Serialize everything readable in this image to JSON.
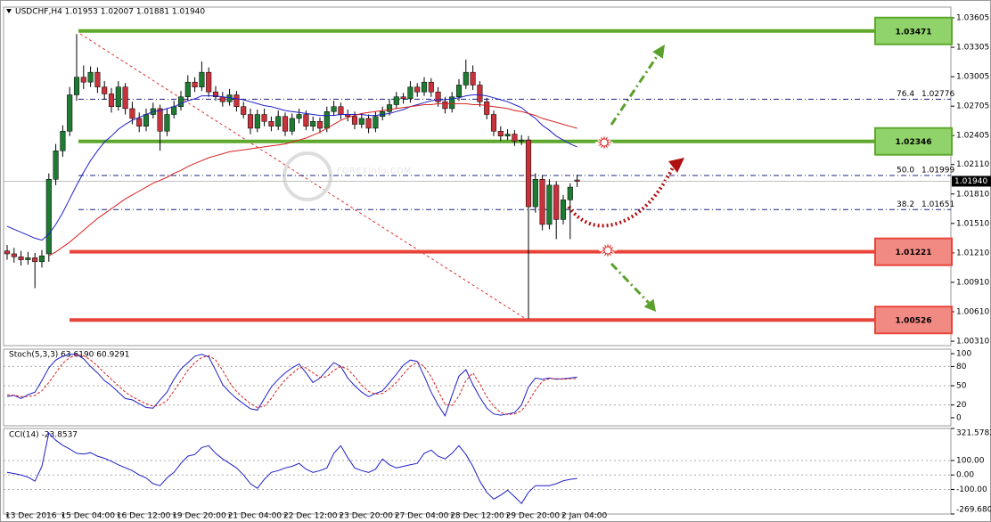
{
  "chart_data": [
    {
      "type": "candlestick",
      "title": "USDCHF,H4  1.01953 1.02007 1.01881 1.01940",
      "watermark": "FOREXinfo.COM",
      "categories": [
        "13 Dec 2016",
        null,
        null,
        null,
        null,
        null,
        null,
        null,
        "15 Dec 04:00",
        null,
        null,
        null,
        null,
        null,
        null,
        null,
        "16 Dec 12:00",
        null,
        null,
        null,
        null,
        null,
        null,
        null,
        "19 Dec 20:00",
        null,
        null,
        null,
        null,
        null,
        null,
        null,
        "21 Dec 04:00",
        null,
        null,
        null,
        null,
        null,
        null,
        null,
        "22 Dec 12:00",
        null,
        null,
        null,
        null,
        null,
        null,
        null,
        "23 Dec 20:00",
        null,
        null,
        null,
        null,
        null,
        null,
        null,
        "27 Dec 04:00",
        null,
        null,
        null,
        null,
        null,
        null,
        null,
        "28 Dec 12:00",
        null,
        null,
        null,
        null,
        null,
        null,
        null,
        "29 Dec 20:00",
        null,
        null,
        null,
        null,
        null,
        null,
        null,
        "2 Jan 04:00",
        null,
        null
      ],
      "open": [
        1.0123,
        1.012,
        1.0117,
        1.0114,
        1.0116,
        1.0112,
        1.012,
        1.0196,
        1.0225,
        1.0245,
        1.0282,
        1.03,
        1.0295,
        1.0305,
        1.029,
        1.0283,
        1.027,
        1.029,
        1.0268,
        1.0258,
        1.025,
        1.0262,
        1.0268,
        1.0245,
        1.0262,
        1.027,
        1.028,
        1.0295,
        1.029,
        1.0305,
        1.0285,
        1.028,
        1.0275,
        1.0282,
        1.027,
        1.0262,
        1.0248,
        1.0262,
        1.0255,
        1.025,
        1.026,
        1.0245,
        1.0258,
        1.0262,
        1.025,
        1.0255,
        1.0248,
        1.0265,
        1.027,
        1.0262,
        1.026,
        1.0252,
        1.0258,
        1.0248,
        1.026,
        1.0265,
        1.0272,
        1.028,
        1.0278,
        1.029,
        1.0285,
        1.0295,
        1.0285,
        1.0275,
        1.0268,
        1.028,
        1.0292,
        1.0305,
        1.0292,
        1.0275,
        1.0262,
        1.0245,
        1.024,
        1.0242,
        1.0235,
        1.0236,
        1.0168,
        1.0196,
        1.015,
        1.019,
        1.0155,
        1.0175,
        1.01953
      ],
      "high": [
        1.0129,
        1.0126,
        1.0123,
        1.0122,
        1.0121,
        1.0124,
        1.0202,
        1.0232,
        1.0251,
        1.029,
        1.0344,
        1.0312,
        1.0311,
        1.031,
        1.0296,
        1.0289,
        1.0296,
        1.0294,
        1.0275,
        1.0264,
        1.0268,
        1.0274,
        1.0272,
        1.0268,
        1.0276,
        1.0286,
        1.0302,
        1.03,
        1.0316,
        1.031,
        1.0291,
        1.0285,
        1.0288,
        1.0286,
        1.0275,
        1.0268,
        1.0267,
        1.0268,
        1.026,
        1.0266,
        1.0264,
        1.0263,
        1.0268,
        1.0266,
        1.026,
        1.0259,
        1.027,
        1.0276,
        1.0274,
        1.0267,
        1.0265,
        1.0263,
        1.0262,
        1.0265,
        1.027,
        1.0278,
        1.0285,
        1.0284,
        1.0296,
        1.0294,
        1.03,
        1.0299,
        1.029,
        1.028,
        1.0285,
        1.0298,
        1.0318,
        1.0312,
        1.0296,
        1.0279,
        1.0266,
        1.025,
        1.0247,
        1.0246,
        1.0241,
        1.024,
        1.0202,
        1.02,
        1.0196,
        1.0194,
        1.018,
        1.0192,
        1.02007
      ],
      "low": [
        1.0114,
        1.0111,
        1.0108,
        1.0109,
        1.0085,
        1.0106,
        1.0112,
        1.019,
        1.0219,
        1.024,
        1.0276,
        1.0288,
        1.029,
        1.0284,
        1.0277,
        1.0264,
        1.0266,
        1.0262,
        1.0252,
        1.0244,
        1.0245,
        1.0258,
        1.0225,
        1.024,
        1.0258,
        1.0266,
        1.0276,
        1.0285,
        1.0286,
        1.028,
        1.0276,
        1.027,
        1.0271,
        1.0265,
        1.0258,
        1.0242,
        1.0244,
        1.025,
        1.0245,
        1.0246,
        1.024,
        1.0241,
        1.0253,
        1.0246,
        1.0245,
        1.0243,
        1.0244,
        1.0261,
        1.0257,
        1.0255,
        1.0247,
        1.0248,
        1.0243,
        1.0244,
        1.0256,
        1.0261,
        1.0268,
        1.0273,
        1.0274,
        1.028,
        1.0281,
        1.028,
        1.027,
        1.0263,
        1.0264,
        1.0276,
        1.0288,
        1.0287,
        1.027,
        1.0257,
        1.024,
        1.0235,
        1.0236,
        1.023,
        1.0231,
        1.0054,
        1.0162,
        1.0144,
        1.0145,
        1.0135,
        1.015,
        1.0135,
        1.01881
      ],
      "close": [
        1.012,
        1.0117,
        1.0114,
        1.0116,
        1.0112,
        1.0118,
        1.0196,
        1.0225,
        1.0245,
        1.0282,
        1.03,
        1.0295,
        1.0305,
        1.029,
        1.0283,
        1.027,
        1.029,
        1.0268,
        1.0258,
        1.025,
        1.0262,
        1.0268,
        1.0245,
        1.0262,
        1.027,
        1.028,
        1.0295,
        1.029,
        1.0305,
        1.0285,
        1.028,
        1.0275,
        1.0282,
        1.027,
        1.0262,
        1.0248,
        1.0262,
        1.0255,
        1.025,
        1.026,
        1.0245,
        1.0258,
        1.0262,
        1.025,
        1.0255,
        1.0248,
        1.0265,
        1.027,
        1.0262,
        1.026,
        1.0252,
        1.0258,
        1.0248,
        1.026,
        1.0265,
        1.0272,
        1.028,
        1.0278,
        1.029,
        1.0285,
        1.0295,
        1.0285,
        1.0275,
        1.0268,
        1.028,
        1.0292,
        1.0305,
        1.0292,
        1.0275,
        1.0262,
        1.0245,
        1.024,
        1.0242,
        1.0235,
        1.0236,
        1.0168,
        1.0196,
        1.015,
        1.019,
        1.0155,
        1.0175,
        1.0188,
        1.0194
      ],
      "up_color": "#1e7b32",
      "down_color": "#c8323a",
      "overlays": [
        {
          "color": "#1f1fc8",
          "values": [
            1.0148,
            1.0145,
            1.0142,
            1.0139,
            1.0136,
            1.0134,
            1.014,
            1.015,
            1.0162,
            1.0176,
            1.019,
            1.0203,
            1.0215,
            1.0225,
            1.0234,
            1.024,
            1.0247,
            1.0252,
            1.0256,
            1.0259,
            1.0262,
            1.0265,
            1.0266,
            1.0268,
            1.027,
            1.0273,
            1.0276,
            1.0278,
            1.0281,
            1.0281,
            1.0281,
            1.028,
            1.0279,
            1.0278,
            1.0277,
            1.0275,
            1.0273,
            1.0271,
            1.027,
            1.0268,
            1.0266,
            1.0265,
            1.0264,
            1.0263,
            1.0262,
            1.0261,
            1.0261,
            1.0261,
            1.0262,
            1.0262,
            1.0262,
            1.0262,
            1.0261,
            1.0261,
            1.0262,
            1.0263,
            1.0265,
            1.0267,
            1.027,
            1.0272,
            1.0274,
            1.0276,
            1.0277,
            1.0277,
            1.0278,
            1.0279,
            1.0281,
            1.0282,
            1.0282,
            1.0281,
            1.0279,
            1.0277,
            1.0275,
            1.0272,
            1.0269,
            1.0263,
            1.0258,
            1.0251,
            1.0246,
            1.024,
            1.0236,
            1.0232,
            1.0229
          ]
        },
        {
          "color": "#d62020",
          "values": [
            null,
            null,
            null,
            null,
            null,
            null,
            1.0118,
            1.0122,
            1.0127,
            1.0132,
            1.0138,
            1.0144,
            1.015,
            1.0156,
            1.0161,
            1.0166,
            1.0171,
            1.0176,
            1.018,
            1.0184,
            1.0188,
            1.0192,
            1.0195,
            1.0198,
            1.0202,
            1.0205,
            1.0209,
            1.0212,
            1.0215,
            1.0218,
            1.022,
            1.0222,
            1.0224,
            1.0225,
            1.0226,
            1.0227,
            1.0228,
            1.0229,
            1.023,
            1.0231,
            1.0232,
            1.0234,
            1.0236,
            1.0238,
            1.0241,
            1.0244,
            1.0248,
            1.0252,
            1.0256,
            1.0259,
            1.0261,
            1.0263,
            1.0264,
            1.0265,
            1.0266,
            1.0267,
            1.0268,
            1.0269,
            1.027,
            1.0271,
            1.0272,
            1.0272,
            1.0273,
            1.0273,
            1.0273,
            1.0273,
            1.0273,
            1.0272,
            1.0272,
            1.0271,
            1.027,
            1.0269,
            1.0268,
            1.0266,
            1.0265,
            1.0263,
            1.0261,
            1.0258,
            1.0256,
            1.0254,
            1.0252,
            1.025,
            1.0248
          ]
        }
      ],
      "levels": [
        {
          "value": 1.03471,
          "color": "#5ea82e",
          "fill": "#8fd36a"
        },
        {
          "value": 1.02346,
          "color": "#5ea82e",
          "fill": "#8fd36a"
        },
        {
          "value": 1.01221,
          "color": "#e8443a",
          "fill": "#f28a84"
        },
        {
          "value": 1.00526,
          "color": "#e8443a",
          "fill": "#f28a84"
        }
      ],
      "fib_levels": [
        {
          "ratio": 76.4,
          "price": 1.02776
        },
        {
          "ratio": {
            "value": 50,
            "label": "50.0"
          },
          "price": 1.01999
        },
        {
          "ratio": 38.2,
          "price": 1.01651
        }
      ],
      "price_marker": {
        "value": 1.0194,
        "label": "1.01940"
      },
      "ylim": [
        1.00265,
        1.03714
      ],
      "yticks": [
        1.03605,
        1.03305,
        1.03005,
        1.02705,
        1.02405,
        {
          "value": 1.0211,
          "label": "1.02110"
        },
        {
          "value": 1.0181,
          "label": "1.01810"
        },
        {
          "value": 1.0151,
          "label": "1.01510"
        },
        {
          "value": 1.0121,
          "label": "1.01210"
        },
        {
          "value": 1.0091,
          "label": "1.00910"
        },
        {
          "value": 1.0061,
          "label": "1.00610"
        },
        {
          "value": 1.0031,
          "label": "1.00310"
        }
      ]
    },
    {
      "type": "stochastic",
      "title": "Stoch(5,3,3) 63.6190 60.9291",
      "ylim": [
        -12.5,
        107
      ],
      "yticks": [
        100,
        80,
        50,
        20,
        0
      ],
      "series": [
        {
          "color": "#1f1fc8",
          "values": [
            33,
            35,
            30,
            36,
            40,
            58,
            78,
            90,
            96,
            99,
            99,
            92,
            80,
            70,
            58,
            50,
            40,
            30,
            28,
            22,
            16,
            15,
            28,
            40,
            60,
            76,
            86,
            96,
            99,
            95,
            74,
            52,
            40,
            30,
            22,
            14,
            12,
            30,
            48,
            60,
            70,
            78,
            84,
            70,
            55,
            62,
            74,
            86,
            80,
            62,
            50,
            40,
            33,
            38,
            42,
            55,
            68,
            82,
            90,
            88,
            65,
            40,
            20,
            3,
            35,
            65,
            75,
            52,
            32,
            15,
            6,
            4,
            6,
            8,
            20,
            48,
            62,
            60,
            62,
            60,
            61,
            62,
            63.619
          ]
        },
        {
          "color": "#d62020",
          "dashed": true,
          "values": [
            36,
            35,
            33,
            33,
            35,
            42,
            55,
            70,
            85,
            94,
            98,
            97,
            90,
            81,
            70,
            60,
            50,
            40,
            33,
            27,
            22,
            18,
            20,
            27,
            42,
            58,
            74,
            86,
            94,
            97,
            90,
            74,
            55,
            41,
            31,
            22,
            16,
            18,
            30,
            46,
            59,
            69,
            78,
            78,
            70,
            63,
            64,
            74,
            80,
            76,
            64,
            51,
            41,
            37,
            38,
            45,
            55,
            68,
            80,
            87,
            80,
            64,
            42,
            21,
            19,
            34,
            58,
            70,
            53,
            33,
            18,
            8,
            5,
            6,
            11,
            25,
            43,
            57,
            61,
            61,
            60,
            61,
            60.9291
          ]
        }
      ]
    },
    {
      "type": "cci",
      "title": "CCI(14) -23.8537",
      "ylim": [
        -269.6801,
        321.5782
      ],
      "yticks": [
        321.5782,
        {
          "value": 100,
          "label": "100.00"
        },
        {
          "value": 0,
          "label": "0.00"
        },
        {
          "value": -100,
          "label": "-100.00"
        },
        -269.6801
      ],
      "series": [
        {
          "color": "#1f1fc8",
          "values": [
            18,
            10,
            0,
            -15,
            -43,
            60,
            290,
            240,
            205,
            180,
            150,
            145,
            154,
            130,
            115,
            95,
            70,
            50,
            30,
            0,
            -20,
            -60,
            -74,
            -20,
            18,
            80,
            130,
            142,
            190,
            203,
            150,
            111,
            80,
            49,
            0,
            -60,
            -92,
            -30,
            18,
            30,
            49,
            60,
            80,
            40,
            18,
            30,
            49,
            150,
            203,
            120,
            49,
            30,
            18,
            40,
            111,
            70,
            49,
            60,
            70,
            80,
            150,
            172,
            130,
            111,
            150,
            203,
            142,
            60,
            -43,
            -120,
            -166,
            -140,
            -105,
            -150,
            -197,
            -120,
            -74,
            -74,
            -74,
            -60,
            -40,
            -30,
            -23.8537
          ]
        }
      ]
    }
  ]
}
